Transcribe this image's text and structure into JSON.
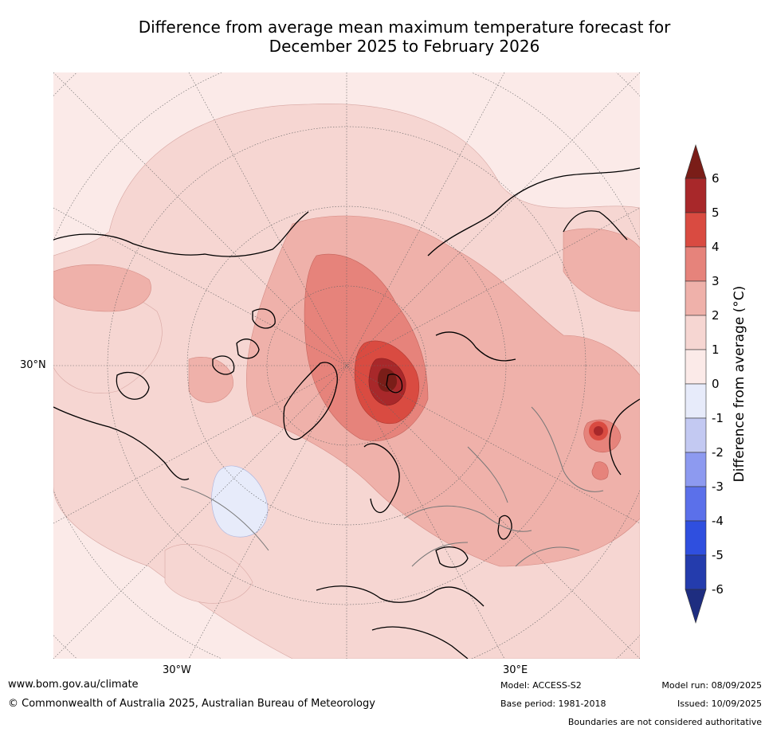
{
  "title": {
    "line1": "Difference from average mean maximum temperature forecast for",
    "line2": "December 2025 to February 2026"
  },
  "map": {
    "projection": "north polar stereographic",
    "lon_labels": [
      "30°W",
      "30°E"
    ],
    "lat_labels": [
      "30°N"
    ],
    "features": [
      "coastlines",
      "country boundaries",
      "graticule"
    ],
    "max_anomaly_regions": [
      "Barents Sea / Svalbard",
      "East Asia hotspot"
    ],
    "below_average_region": "North Atlantic"
  },
  "colorbar": {
    "title": "Difference from average (°C)",
    "ticks": [
      "6",
      "5",
      "4",
      "3",
      "2",
      "1",
      "0",
      "-1",
      "-2",
      "-3",
      "-4",
      "-5",
      "-6"
    ],
    "levels": [
      {
        "range": ">6",
        "color": "#7a1d18"
      },
      {
        "range": "5 to 6",
        "color": "#a8282a"
      },
      {
        "range": "4 to 5",
        "color": "#d94b41"
      },
      {
        "range": "3 to 4",
        "color": "#e6837b"
      },
      {
        "range": "2 to 3",
        "color": "#efb1aa"
      },
      {
        "range": "1 to 2",
        "color": "#f6d6d2"
      },
      {
        "range": "0 to 1",
        "color": "#fbeae8"
      },
      {
        "range": "-1 to 0",
        "color": "#e7ebfa"
      },
      {
        "range": "-2 to -1",
        "color": "#c3c9f2"
      },
      {
        "range": "-3 to -2",
        "color": "#8d9af0"
      },
      {
        "range": "-4 to -3",
        "color": "#5b70ea"
      },
      {
        "range": "-5 to -4",
        "color": "#2f4fdf"
      },
      {
        "range": "-6 to -5",
        "color": "#243cad"
      },
      {
        "range": "<-6",
        "color": "#1e2d80"
      }
    ]
  },
  "footer": {
    "website": "www.bom.gov.au/climate",
    "copyright": "© Commonwealth of Australia 2025, Australian Bureau of Meteorology",
    "model": "Model: ACCESS-S2",
    "base_period": "Base period: 1981-2018",
    "model_run": "Model run: 08/09/2025",
    "issued": "Issued: 10/09/2025",
    "disclaimer": "Boundaries are not considered authoritative"
  }
}
